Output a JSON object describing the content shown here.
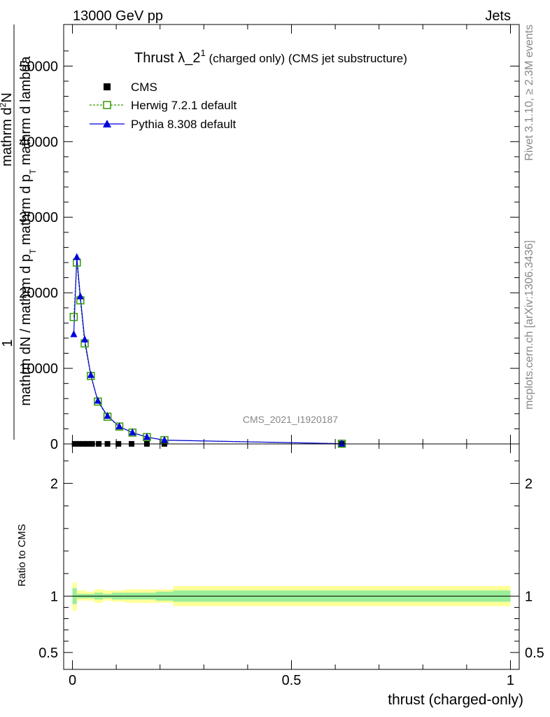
{
  "header": {
    "left": "13000 GeV pp",
    "right": "Jets"
  },
  "title": {
    "main": "Thrust λ_2",
    "sup": "1",
    "rest": " (charged only) (CMS jet substructure)"
  },
  "side_text": {
    "rivet": "Rivet 3.1.10, ≥ 2.3M events",
    "mcplots": "mcplots.cern.ch [arXiv:1306.3436]"
  },
  "watermark": "CMS_2021_I1920187",
  "ylabel_main": {
    "one": "1",
    "numerator_outer": "mathrm d",
    "numerator_outer_sup": "2",
    "numerator_outer_rest": "N",
    "denominator_outer": "mathrm dN / mathrm d p",
    "denominator_outer_sub": "T",
    "denominator_outer_rest": " mathrm d p",
    "denominator_outer_sub2": "T",
    "denominator_outer_rest2": " mathrm d lambda"
  },
  "ylabel_ratio": "Ratio to CMS",
  "xlabel": "thrust (charged-only)",
  "colors": {
    "herwig": "#339900",
    "pythia": "#0000dd",
    "band_outer": "#ffff99",
    "band_inner": "#99ee99"
  },
  "chart_data": [
    {
      "type": "line",
      "panel": "main",
      "xlim": [
        -0.02,
        1.02
      ],
      "ylim": [
        0,
        55500
      ],
      "yticks": [
        0,
        10000,
        20000,
        30000,
        40000,
        50000
      ],
      "ytick_labels": [
        "0",
        "10000",
        "20000",
        "30000",
        "40000",
        "50000"
      ],
      "legend": [
        "CMS",
        "Herwig 7.2.1 default",
        "Pythia 8.308 default"
      ],
      "legend_position": "top-left",
      "series": [
        {
          "name": "CMS",
          "marker": "square",
          "x": [
            0.005,
            0.015,
            0.025,
            0.035,
            0.045,
            0.06,
            0.08,
            0.105,
            0.135,
            0.17,
            0.21,
            0.615
          ],
          "y": [
            10,
            10,
            10,
            10,
            10,
            10,
            10,
            10,
            10,
            10,
            10,
            10
          ]
        },
        {
          "name": "Herwig 7.2.1 default",
          "marker": "open-square",
          "x": [
            0.003,
            0.01,
            0.018,
            0.028,
            0.042,
            0.058,
            0.08,
            0.107,
            0.137,
            0.17,
            0.21,
            0.615
          ],
          "y": [
            16800,
            24000,
            19000,
            13300,
            9000,
            5600,
            3600,
            2300,
            1500,
            900,
            500,
            30
          ]
        },
        {
          "name": "Pythia 8.308 default",
          "marker": "triangle",
          "x": [
            0.003,
            0.01,
            0.018,
            0.028,
            0.042,
            0.058,
            0.08,
            0.107,
            0.137,
            0.17,
            0.21,
            0.615
          ],
          "y": [
            14500,
            24700,
            19500,
            13800,
            9100,
            5700,
            3700,
            2300,
            1500,
            900,
            500,
            30
          ]
        }
      ]
    },
    {
      "type": "area",
      "panel": "ratio",
      "xlim": [
        -0.02,
        1.02
      ],
      "ylim": [
        0.35,
        2.35
      ],
      "yticks": [
        0.5,
        1,
        2
      ],
      "ytick_labels": [
        "0.5",
        "1",
        "2"
      ],
      "xticks": [
        0,
        0.5,
        1
      ],
      "xtick_labels": [
        "0",
        "0.5",
        "1"
      ],
      "bins": [
        {
          "x0": 0.0,
          "x1": 0.01,
          "outer": [
            0.87,
            1.12
          ],
          "inner": [
            0.93,
            1.07
          ]
        },
        {
          "x0": 0.01,
          "x1": 0.02,
          "outer": [
            0.96,
            1.05
          ],
          "inner": [
            0.98,
            1.02
          ]
        },
        {
          "x0": 0.02,
          "x1": 0.03,
          "outer": [
            0.96,
            1.05
          ],
          "inner": [
            0.98,
            1.02
          ]
        },
        {
          "x0": 0.03,
          "x1": 0.05,
          "outer": [
            0.96,
            1.04
          ],
          "inner": [
            0.98,
            1.02
          ]
        },
        {
          "x0": 0.05,
          "x1": 0.07,
          "outer": [
            0.94,
            1.06
          ],
          "inner": [
            0.97,
            1.03
          ]
        },
        {
          "x0": 0.07,
          "x1": 0.09,
          "outer": [
            0.96,
            1.05
          ],
          "inner": [
            0.98,
            1.02
          ]
        },
        {
          "x0": 0.09,
          "x1": 0.12,
          "outer": [
            0.95,
            1.05
          ],
          "inner": [
            0.97,
            1.03
          ]
        },
        {
          "x0": 0.12,
          "x1": 0.15,
          "outer": [
            0.94,
            1.06
          ],
          "inner": [
            0.97,
            1.03
          ]
        },
        {
          "x0": 0.15,
          "x1": 0.19,
          "outer": [
            0.94,
            1.06
          ],
          "inner": [
            0.97,
            1.03
          ]
        },
        {
          "x0": 0.19,
          "x1": 0.23,
          "outer": [
            0.94,
            1.06
          ],
          "inner": [
            0.96,
            1.04
          ]
        },
        {
          "x0": 0.23,
          "x1": 1.0,
          "outer": [
            0.91,
            1.09
          ],
          "inner": [
            0.95,
            1.05
          ]
        }
      ],
      "reference_line": 1
    }
  ]
}
